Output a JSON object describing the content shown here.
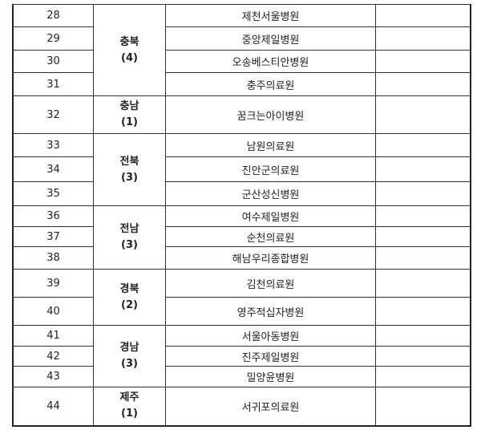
{
  "rows": [
    {
      "no": "28",
      "hospital": "제천서울병원"
    },
    {
      "no": "29",
      "hospital": "중앙제일병원"
    },
    {
      "no": "30",
      "hospital": "오송베스티안병원"
    },
    {
      "no": "31",
      "hospital": "충주의료원"
    },
    {
      "no": "32",
      "hospital": "꿈크는아이병원"
    },
    {
      "no": "33",
      "hospital": "남원의료원"
    },
    {
      "no": "34",
      "hospital": "진안군의료원"
    },
    {
      "no": "35",
      "hospital": "군산성신병원"
    },
    {
      "no": "36",
      "hospital": "여수제일병원"
    },
    {
      "no": "37",
      "hospital": "순천의료원"
    },
    {
      "no": "38",
      "hospital": "해남우리종합병원"
    },
    {
      "no": "39",
      "hospital": "김천의료원"
    },
    {
      "no": "40",
      "hospital": "영주적십자병원"
    },
    {
      "no": "41",
      "hospital": "서울아동병원"
    },
    {
      "no": "42",
      "hospital": "진주제일병원"
    },
    {
      "no": "43",
      "hospital": "밀양윤병원"
    },
    {
      "no": "44",
      "hospital": "서귀포의료원"
    }
  ],
  "regions": [
    {
      "name": "충북",
      "count": "(4)"
    },
    {
      "name": "충남",
      "count": "(1)"
    },
    {
      "name": "전북",
      "count": "(3)"
    },
    {
      "name": "전남",
      "count": "(3)"
    },
    {
      "name": "경북",
      "count": "(2)"
    },
    {
      "name": "경남",
      "count": "(3)"
    },
    {
      "name": "제주",
      "count": "(1)"
    }
  ]
}
